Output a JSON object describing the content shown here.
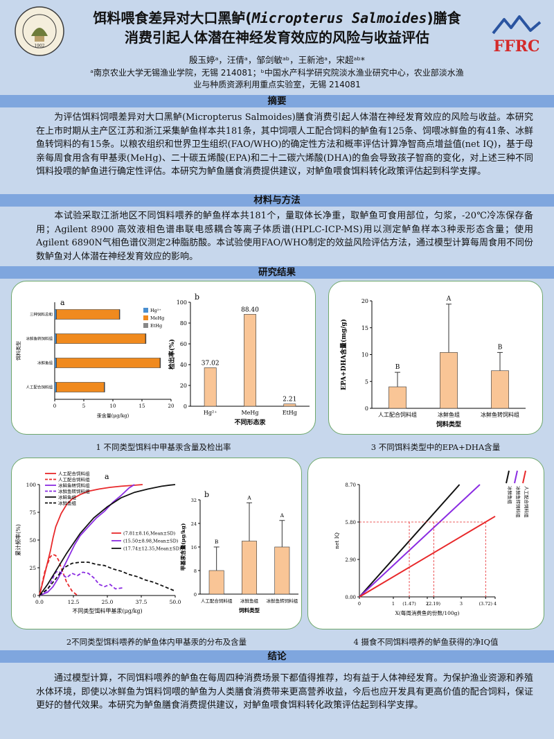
{
  "header": {
    "title_line1_a": "饵料喂食差异对大口黑鲈(",
    "title_line1_species": "Micropterus Salmoides",
    "title_line1_b": ")膳食",
    "title_line2": "消费引起人体潜在神经发育效应的风险与收益评估",
    "authors": "殷玉婷ᵃ，汪倩ᵃ，邹剑敏ᵃᵇ，王新池ᵃ，宋超ᵃᵇ*",
    "affil_line1": "ᵃ南京农业大学无锡渔业学院，无锡 214081；ᵇ中国水产科学研究院淡水渔业研究中心，农业部淡水渔",
    "affil_line2": "业与种质资源利用重点实验室，无锡 214081",
    "logo_left_text": "NANJING AGRICULTURAL UNIVERSITY",
    "logo_left_year": "1902",
    "logo_right_text": "FFRC"
  },
  "sections": {
    "abstract_title": "摘要",
    "abstract_text": "为评估饵料饲喂差异对大口黑鲈(Micropterus Salmoides)膳食消费引起人体潜在神经发育效应的风险与收益。本研究在上市时期从主产区江苏和浙江采集鲈鱼样本共181条，其中饲喂人工配合饲料的鲈鱼有125条、饲喂冰鲜鱼的有41条、冰鲜鱼转饲料的有15条。以粮农组织和世界卫生组织(FAO/WHO)的确定性方法和概率评估计算净智商点增益值(net IQ)，基于母亲每周食用含有甲基汞(MeHg)、二十碳五烯酸(EPA)和二十二碳六烯酸(DHA)的鱼会导致孩子智商的变化，对上述三种不同饵料投喂的鲈鱼进行确定性评估。本研究为鲈鱼膳食消费提供建议，对鲈鱼喂食饵料转化政策评估起到科学支撑。",
    "methods_title": "材料与方法",
    "methods_text": "本试验采取江浙地区不同饵料喂养的鲈鱼样本共181个，量取体长净重，取鲈鱼可食用部位，匀浆，-20℃冷冻保存备用；Agilent 8900 高效液相色谱串联电感耦合等离子体质谱(HPLC-ICP-MS)用以测定鲈鱼样本3种汞形态含量；使用Agilent 6890N气相色谱仪测定2种脂肪酸。本试验使用FAO/WHO制定的效益风险评估方法，通过模型计算每周食用不同份数鲈鱼对人体潜在神经发育效应的影响。",
    "results_title": "研究结果",
    "conclusion_title": "结论",
    "conclusion_text": "通过模型计算，不同饵料喂养的鲈鱼在每周四种消费场景下都值得推荐，均有益于人体神经发育。为保护渔业资源和养殖水体环境，即使以冰鲜鱼为饵料饲喂的鲈鱼为人类膳食消费带来更高营养收益，今后也应开发具有更高价值的配合饲料，保证更好的替代效果。本研究为鲈鱼膳食消费提供建议，对鲈鱼喂食饵料转化政策评估起到科学支撑。"
  },
  "captions": {
    "fig1": "1 不同类型饵料中甲基汞含量及检出率",
    "fig2": "2不同类型饵料喂养的鲈鱼体内甲基汞的分布及含量",
    "fig3": "3 不同饵料类型中的EPA+DHA含量",
    "fig4": "4 摄食不同饵料喂养的鲈鱼获得的净IQ值"
  },
  "chart_data": [
    {
      "id": "fig1a",
      "type": "bar",
      "panel_label": "a",
      "orientation": "horizontal",
      "categories": [
        "人工配合饲料组",
        "冰鲜鱼组",
        "冰鲜鱼转饲料组",
        "三种饲料总和"
      ],
      "series": [
        {
          "name": "Hg²⁺",
          "color": "#4a8fd0",
          "values": [
            0.3,
            0.3,
            0.3,
            0.3
          ]
        },
        {
          "name": "MeHg",
          "color": "#f08a1e",
          "values": [
            8.2,
            17.8,
            15.3,
            10.8
          ]
        },
        {
          "name": "EtHg",
          "color": "#888888",
          "values": [
            0.1,
            0.1,
            0.1,
            0.1
          ]
        }
      ],
      "xlabel": "汞含量(μg/kg)",
      "ylabel": "饵料类型",
      "xticks": [
        "0",
        "5",
        "10",
        "15",
        "20"
      ],
      "xlim": [
        0,
        20
      ]
    },
    {
      "id": "fig1b",
      "type": "bar",
      "panel_label": "b",
      "categories": [
        "Hg²⁺",
        "MeHg",
        "EtHg"
      ],
      "values": [
        37.02,
        88.4,
        2.21
      ],
      "value_labels": [
        "37.02",
        "88.40",
        "2.21"
      ],
      "xlabel": "不同形态汞",
      "ylabel": "检出率(%)",
      "yticks": [
        "0",
        "20",
        "40",
        "60",
        "80",
        "100"
      ],
      "ylim": [
        0,
        100
      ],
      "color": "#f9c596"
    },
    {
      "id": "fig2a",
      "type": "line",
      "panel_label": "a",
      "series": [
        {
          "name": "人工配合饲料组",
          "color": "#e8282a",
          "dash": "solid",
          "x": [
            0,
            2,
            4,
            5,
            6,
            8,
            10,
            12,
            15,
            18,
            22,
            26,
            30,
            34,
            38
          ],
          "y": [
            0,
            20,
            40,
            52,
            62,
            74,
            82,
            87,
            91,
            94,
            96,
            97.5,
            98.5,
            99.2,
            100
          ]
        },
        {
          "name": "人工配合饲料组",
          "color": "#e8282a",
          "dash": "dash",
          "x": [
            0,
            2,
            4,
            5,
            6,
            7,
            8,
            10,
            12,
            14
          ],
          "y": [
            0,
            22,
            35,
            37,
            36,
            32,
            25,
            12,
            4,
            0
          ]
        },
        {
          "name": "冰鲜鱼转饲料组",
          "color": "#8a2be2",
          "dash": "solid",
          "x": [
            0,
            3,
            5,
            7,
            9,
            11,
            13,
            15,
            18,
            21,
            24,
            27,
            30,
            33,
            35
          ],
          "y": [
            0,
            3,
            8,
            16,
            26,
            36,
            46,
            54,
            62,
            70,
            76,
            84,
            90,
            97,
            100
          ]
        },
        {
          "name": "冰鲜鱼转饲料组",
          "color": "#8a2be2",
          "dash": "dash",
          "x": [
            0,
            3,
            5,
            6,
            7,
            9,
            10,
            12,
            14,
            16,
            18,
            20,
            22,
            24,
            26,
            28,
            31
          ],
          "y": [
            0,
            5,
            16,
            21,
            22,
            18,
            16,
            20,
            18,
            21,
            20,
            16,
            10,
            8,
            10,
            6,
            7
          ]
        },
        {
          "name": "冰鲜鱼组",
          "color": "#111111",
          "dash": "solid",
          "x": [
            0,
            3,
            6,
            10,
            15,
            20,
            25,
            30,
            35,
            40,
            45,
            48,
            50
          ],
          "y": [
            0,
            10,
            22,
            38,
            56,
            70,
            80,
            88,
            93,
            96,
            98.5,
            99.5,
            100
          ]
        },
        {
          "name": "冰鲜鱼组",
          "color": "#111111",
          "dash": "dash",
          "x": [
            0,
            3,
            6,
            9,
            12,
            15,
            18,
            21,
            24,
            27,
            30,
            33,
            36,
            39,
            42,
            45,
            48,
            50
          ],
          "y": [
            0,
            6,
            15,
            25,
            29,
            30,
            30,
            28,
            27,
            24,
            22,
            19,
            17,
            14,
            12,
            9,
            6,
            4
          ]
        }
      ],
      "legend_stats": [
        {
          "color": "#e8282a",
          "text": "(7.81±8.16,Mean±SD)"
        },
        {
          "color": "#8a2be2",
          "text": "(15.50±8.98,Mean±SD)"
        },
        {
          "color": "#111111",
          "text": "(17.74±12.35,Mean±SD)"
        }
      ],
      "xlabel": "不同类型饵料甲基汞(μg/kg)",
      "ylabel": "累计频率(%)",
      "xticks": [
        "0.0",
        "12.5",
        "25.0",
        "37.5",
        "50.0"
      ],
      "xlim": [
        0,
        50
      ],
      "yticks": [
        "0",
        "25",
        "50",
        "75",
        "100"
      ],
      "ylim": [
        0,
        100
      ]
    },
    {
      "id": "fig2b",
      "type": "bar",
      "panel_label": "b",
      "categories": [
        "人工配合饲料组",
        "冰鲜鱼组",
        "冰鲜鱼转饲料组"
      ],
      "values": [
        8,
        18,
        16
      ],
      "errors": [
        8,
        13,
        9
      ],
      "sig_letters": [
        "B",
        "A",
        "A"
      ],
      "xlabel": "饲料类型",
      "ylabel": "甲基汞含量(μg/kg)",
      "yticks": [
        "0",
        "8",
        "16",
        "24",
        "32"
      ],
      "ylim": [
        0,
        32
      ],
      "color": "#f9c596"
    },
    {
      "id": "fig3",
      "type": "bar",
      "categories": [
        "人工配合饲料组",
        "冰鲜鱼组",
        "冰鲜鱼转饲料组"
      ],
      "values": [
        4,
        10.4,
        7
      ],
      "errors": [
        2.7,
        9,
        3.4
      ],
      "sig_letters": [
        "B",
        "A",
        "B"
      ],
      "xlabel": "饲料类型",
      "ylabel": "EPA+DHA含量(mg/g)",
      "yticks": [
        "0",
        "5",
        "10",
        "15",
        "20"
      ],
      "ylim": [
        0,
        20
      ],
      "color": "#f9c596"
    },
    {
      "id": "fig4",
      "type": "line",
      "series": [
        {
          "name": "冰鲜鱼组",
          "color": "#111111",
          "x": [
            0,
            2.95
          ],
          "y": [
            0,
            8.7
          ]
        },
        {
          "name": "冰鲜鱼转饲料组",
          "color": "#8a2be2",
          "x": [
            0,
            3.55
          ],
          "y": [
            0,
            8.7
          ]
        },
        {
          "name": "人工配合饲料组",
          "color": "#e8282a",
          "x": [
            0,
            4
          ],
          "y": [
            0,
            6.24
          ]
        }
      ],
      "ref_y": 5.8,
      "ref_x": [
        1.47,
        2.19,
        3.72
      ],
      "xlabel": "X(每周消费鱼的份数/100g)",
      "ylabel": "net IQ",
      "xticks": [
        "0",
        "1",
        "(1.47)",
        "2",
        "(2.19)",
        "3",
        "(3.72)",
        "4"
      ],
      "yticks": [
        "0.00",
        "2.90",
        "5.80",
        "8.70"
      ],
      "xlim": [
        0,
        4
      ],
      "ylim": [
        0,
        8.7
      ]
    }
  ]
}
